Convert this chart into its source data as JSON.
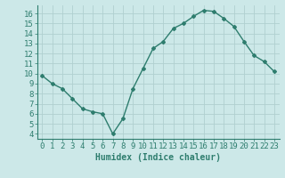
{
  "x": [
    0,
    1,
    2,
    3,
    4,
    5,
    6,
    7,
    8,
    9,
    10,
    11,
    12,
    13,
    14,
    15,
    16,
    17,
    18,
    19,
    20,
    21,
    22,
    23
  ],
  "y": [
    9.8,
    9.0,
    8.5,
    7.5,
    6.5,
    6.2,
    6.0,
    4.0,
    5.5,
    8.5,
    10.5,
    12.5,
    13.2,
    14.5,
    15.0,
    15.7,
    16.3,
    16.2,
    15.5,
    14.7,
    13.2,
    11.8,
    11.2,
    10.2
  ],
  "xlabel": "Humidex (Indice chaleur)",
  "line_color": "#2e7d6e",
  "bg_color": "#cce8e8",
  "grid_color": "#b0d0d0",
  "marker": "D",
  "marker_size": 2,
  "line_width": 1.0,
  "xlim": [
    -0.5,
    23.5
  ],
  "ylim": [
    3.5,
    16.8
  ],
  "yticks": [
    4,
    5,
    6,
    7,
    8,
    9,
    10,
    11,
    12,
    13,
    14,
    15,
    16
  ],
  "xtick_labels": [
    "0",
    "1",
    "2",
    "3",
    "4",
    "5",
    "6",
    "7",
    "8",
    "9",
    "10",
    "11",
    "12",
    "13",
    "14",
    "15",
    "16",
    "17",
    "18",
    "19",
    "20",
    "21",
    "22",
    "23"
  ],
  "xlabel_fontsize": 7,
  "tick_fontsize": 6.5
}
